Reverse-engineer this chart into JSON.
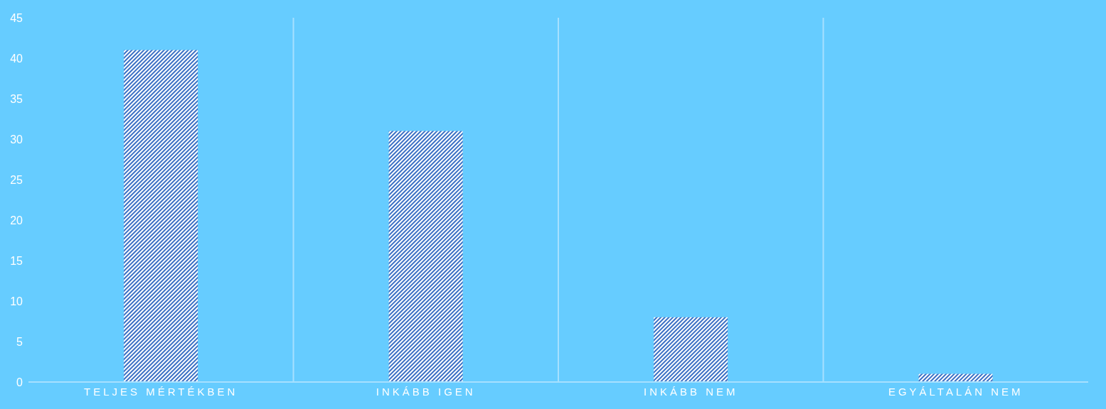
{
  "chart_data": {
    "type": "bar",
    "categories": [
      "TELJES MÉRTÉKBEN",
      "INKÁBB IGEN",
      "INKÁBB NEM",
      "EGYÁLTALÁN NEM"
    ],
    "values": [
      41,
      31,
      8,
      1
    ],
    "color": "#3a6fc4",
    "ylim": [
      0,
      45
    ],
    "yticks": [
      0,
      5,
      10,
      15,
      20,
      25,
      30,
      35,
      40,
      45
    ],
    "grid": "x"
  }
}
